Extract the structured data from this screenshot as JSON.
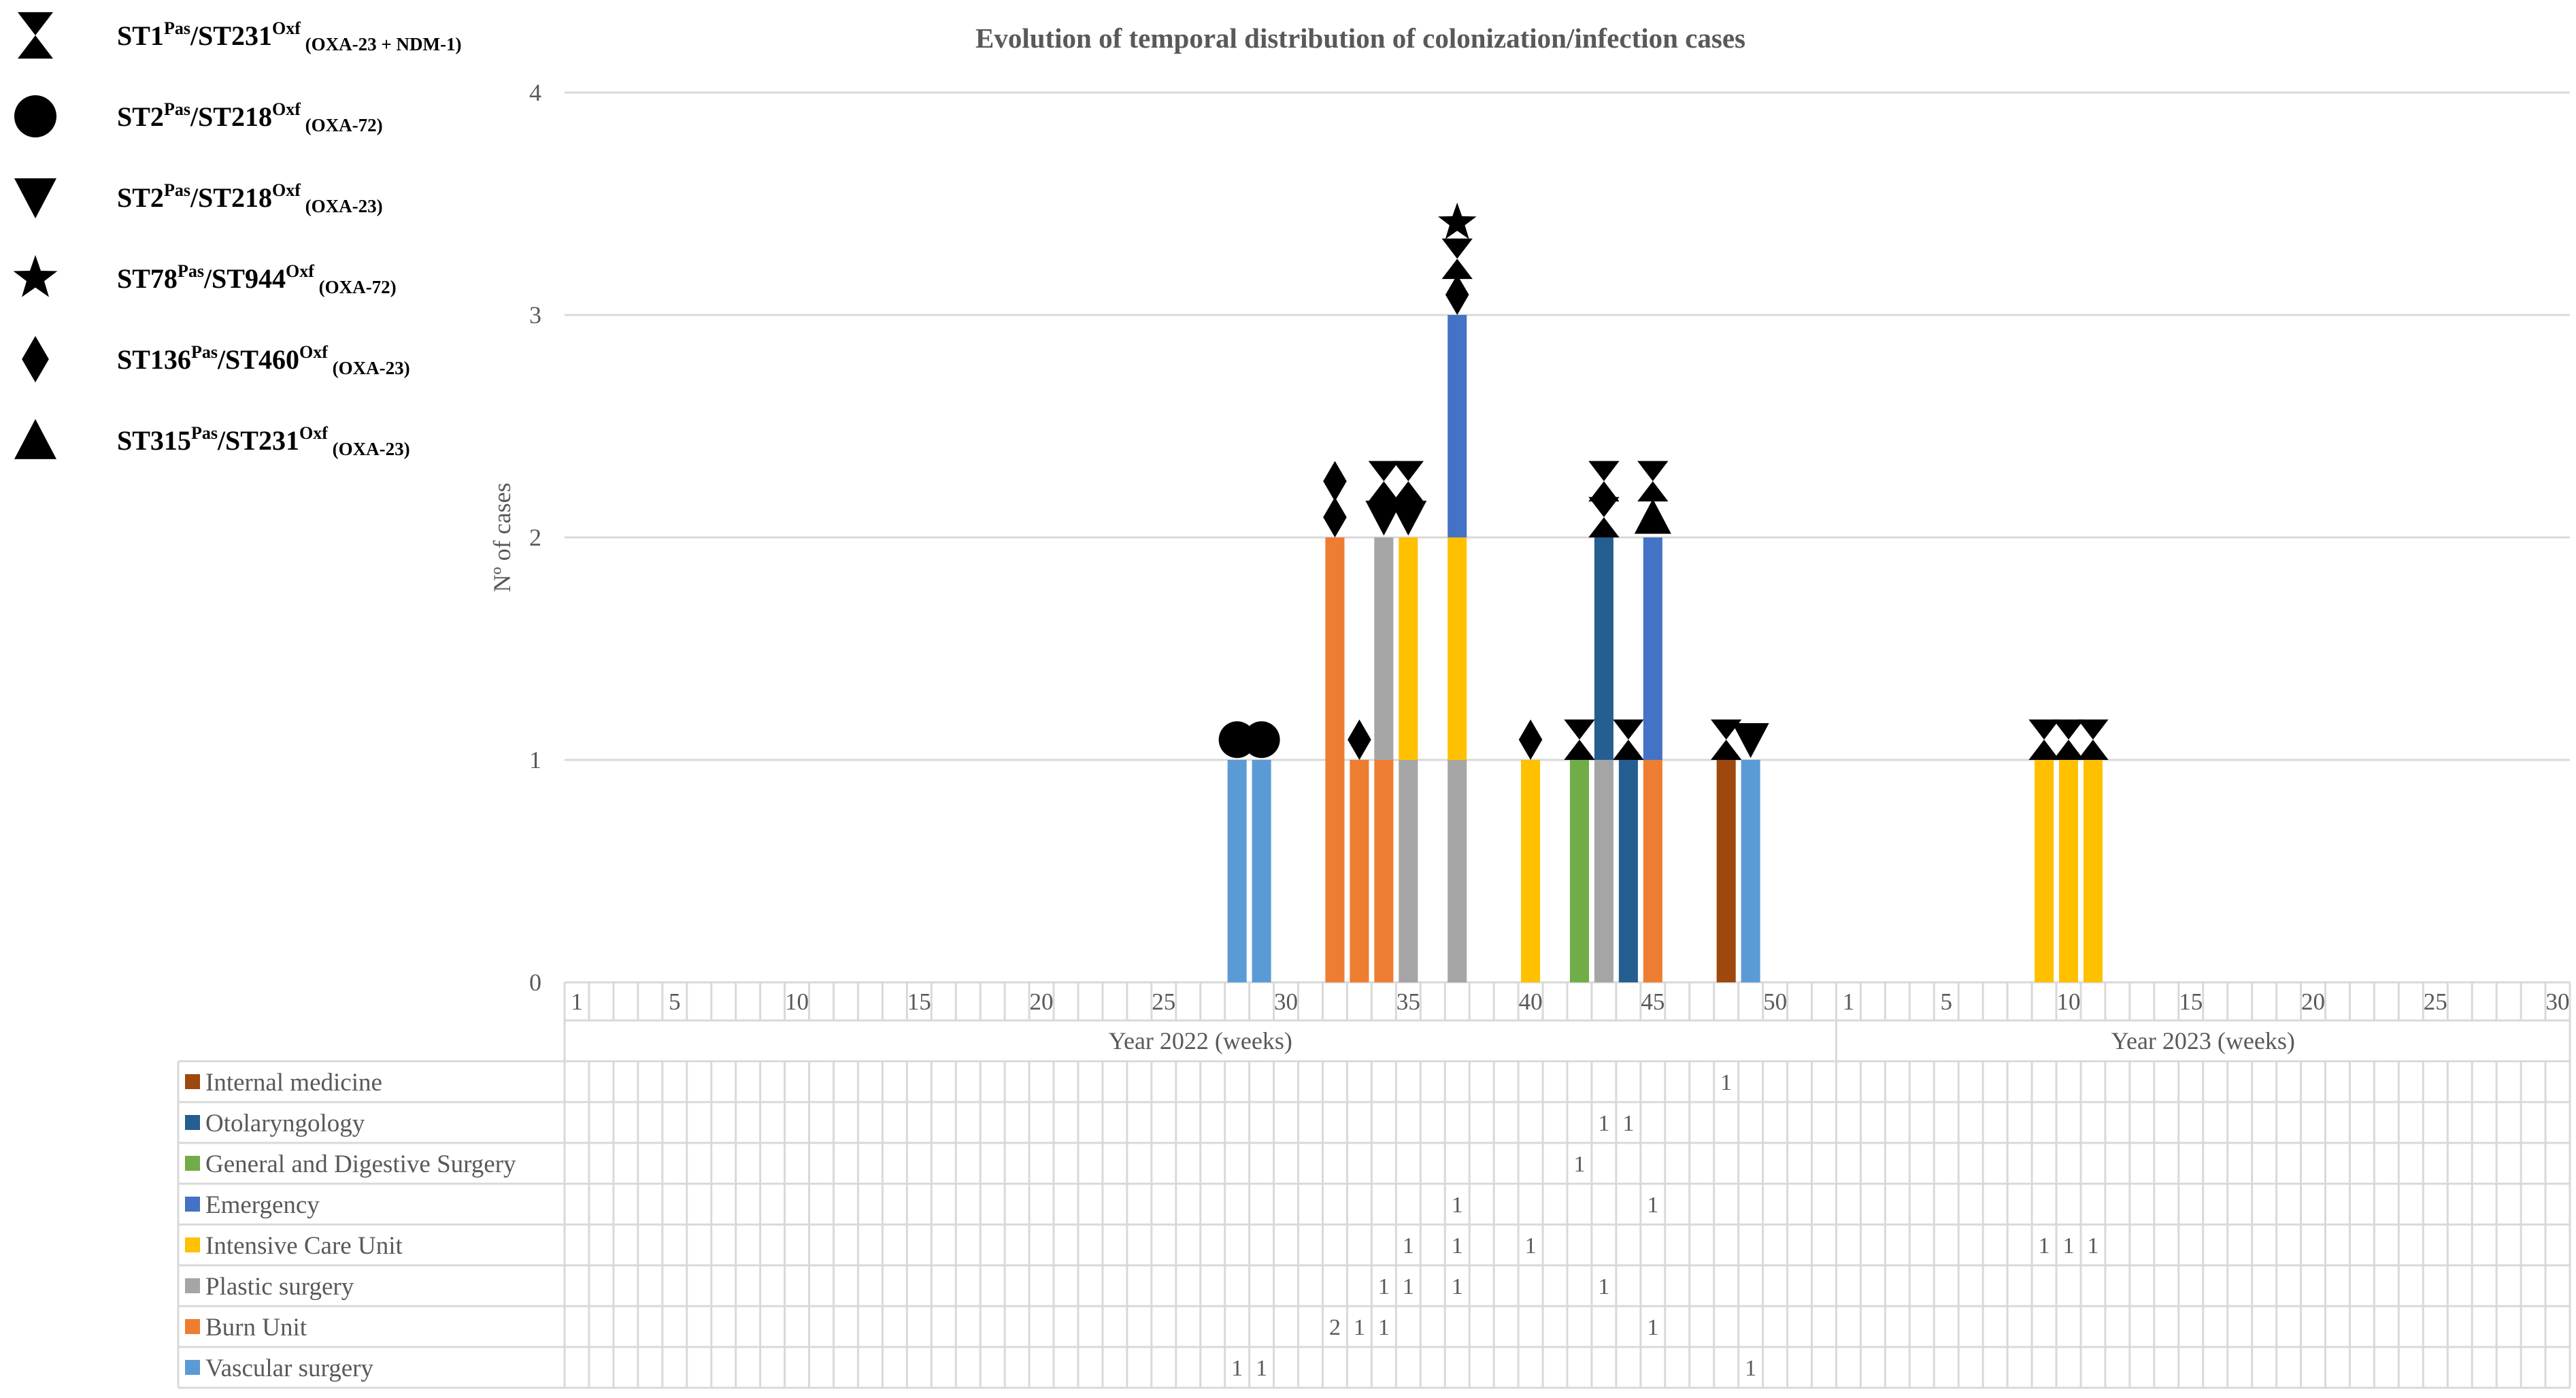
{
  "chart_data": {
    "type": "bar",
    "title": "Evolution of temporal distribution of colonization/infection cases",
    "ylabel": "Nº of cases",
    "ylim": [
      0,
      4
    ],
    "yticks": [
      "0",
      "1",
      "2",
      "3",
      "4"
    ],
    "grid": true,
    "legend_position": "table below plot",
    "periods": [
      {
        "label": "Year 2022 (weeks)",
        "weeks": 52,
        "tick_labels": [
          {
            "week": 1,
            "text": "1"
          },
          {
            "week": 5,
            "text": "5"
          },
          {
            "week": 10,
            "text": "10"
          },
          {
            "week": 15,
            "text": "15"
          },
          {
            "week": 20,
            "text": "20"
          },
          {
            "week": 25,
            "text": "25"
          },
          {
            "week": 30,
            "text": "30"
          },
          {
            "week": 35,
            "text": "35"
          },
          {
            "week": 40,
            "text": "40"
          },
          {
            "week": 45,
            "text": "45"
          },
          {
            "week": 50,
            "text": "50"
          }
        ]
      },
      {
        "label": "Year 2023 (weeks)",
        "weeks": 30,
        "tick_labels": [
          {
            "week": 1,
            "text": "1"
          },
          {
            "week": 5,
            "text": "5"
          },
          {
            "week": 10,
            "text": "10"
          },
          {
            "week": 15,
            "text": "15"
          },
          {
            "week": 20,
            "text": "20"
          },
          {
            "week": 25,
            "text": "25"
          },
          {
            "week": 30,
            "text": "30"
          }
        ]
      }
    ],
    "series": [
      {
        "name": "Internal medicine",
        "color": "#9E480E",
        "values": [
          {
            "year": 2022,
            "week": 48,
            "value": 1
          }
        ]
      },
      {
        "name": "Otolaryngology",
        "color": "#255E91",
        "values": [
          {
            "year": 2022,
            "week": 43,
            "value": 1
          },
          {
            "year": 2022,
            "week": 44,
            "value": 1
          }
        ]
      },
      {
        "name": "General and Digestive Surgery",
        "color": "#70AD47",
        "values": [
          {
            "year": 2022,
            "week": 42,
            "value": 1
          }
        ]
      },
      {
        "name": "Emergency",
        "color": "#4472C4",
        "values": [
          {
            "year": 2022,
            "week": 37,
            "value": 1
          },
          {
            "year": 2022,
            "week": 45,
            "value": 1
          }
        ]
      },
      {
        "name": "Intensive Care Unit",
        "color": "#FFC000",
        "values": [
          {
            "year": 2022,
            "week": 35,
            "value": 1
          },
          {
            "year": 2022,
            "week": 37,
            "value": 1
          },
          {
            "year": 2022,
            "week": 40,
            "value": 1
          },
          {
            "year": 2023,
            "week": 9,
            "value": 1
          },
          {
            "year": 2023,
            "week": 10,
            "value": 1
          },
          {
            "year": 2023,
            "week": 11,
            "value": 1
          }
        ]
      },
      {
        "name": "Plastic surgery",
        "color": "#A5A5A5",
        "values": [
          {
            "year": 2022,
            "week": 34,
            "value": 1
          },
          {
            "year": 2022,
            "week": 35,
            "value": 1
          },
          {
            "year": 2022,
            "week": 37,
            "value": 1
          },
          {
            "year": 2022,
            "week": 43,
            "value": 1
          }
        ]
      },
      {
        "name": "Burn Unit",
        "color": "#ED7D31",
        "values": [
          {
            "year": 2022,
            "week": 32,
            "value": 2
          },
          {
            "year": 2022,
            "week": 33,
            "value": 1
          },
          {
            "year": 2022,
            "week": 34,
            "value": 1
          },
          {
            "year": 2022,
            "week": 45,
            "value": 1
          }
        ]
      },
      {
        "name": "Vascular surgery",
        "color": "#5B9BD5",
        "values": [
          {
            "year": 2022,
            "week": 28,
            "value": 1
          },
          {
            "year": 2022,
            "week": 29,
            "value": 1
          },
          {
            "year": 2022,
            "week": 49,
            "value": 1
          }
        ]
      }
    ],
    "stack_order": [
      "Vascular surgery",
      "Burn Unit",
      "Plastic surgery",
      "Intensive Care Unit",
      "Emergency",
      "General and Digestive Surgery",
      "Otolaryngology",
      "Internal medicine"
    ],
    "strain_legend": [
      {
        "symbol": "hourglass",
        "main": "ST1",
        "sup1": "Pas",
        "mid": "/ST231",
        "sup2": "Oxf",
        "sub": "(OXA-23 + NDM-1)"
      },
      {
        "symbol": "circle",
        "main": "ST2",
        "sup1": "Pas",
        "mid": "/ST218",
        "sup2": "Oxf",
        "sub": "(OXA-72)"
      },
      {
        "symbol": "triangle-down",
        "main": "ST2",
        "sup1": "Pas",
        "mid": "/ST218",
        "sup2": "Oxf",
        "sub": "(OXA-23)"
      },
      {
        "symbol": "star",
        "main": "ST78",
        "sup1": "Pas",
        "mid": "/ST944",
        "sup2": "Oxf",
        "sub": "(OXA-72)"
      },
      {
        "symbol": "diamond",
        "main": "ST136",
        "sup1": "Pas",
        "mid": "/ST460",
        "sup2": "Oxf",
        "sub": "(OXA-23)"
      },
      {
        "symbol": "triangle-up",
        "main": "ST315",
        "sup1": "Pas",
        "mid": "/ST231",
        "sup2": "Oxf",
        "sub": "(OXA-23)"
      }
    ],
    "strain_markers": [
      {
        "year": 2022,
        "week": 28,
        "symbols": [
          "circle"
        ]
      },
      {
        "year": 2022,
        "week": 29,
        "symbols": [
          "circle"
        ]
      },
      {
        "year": 2022,
        "week": 32,
        "symbols": [
          "diamond",
          "diamond"
        ]
      },
      {
        "year": 2022,
        "week": 33,
        "symbols": [
          "diamond"
        ]
      },
      {
        "year": 2022,
        "week": 34,
        "symbols": [
          "triangle-down",
          "hourglass"
        ]
      },
      {
        "year": 2022,
        "week": 35,
        "symbols": [
          "triangle-down",
          "hourglass"
        ]
      },
      {
        "year": 2022,
        "week": 37,
        "symbols": [
          "diamond",
          "hourglass",
          "star"
        ]
      },
      {
        "year": 2022,
        "week": 40,
        "symbols": [
          "diamond"
        ]
      },
      {
        "year": 2022,
        "week": 42,
        "symbols": [
          "hourglass"
        ]
      },
      {
        "year": 2022,
        "week": 43,
        "symbols": [
          "hourglass",
          "hourglass"
        ]
      },
      {
        "year": 2022,
        "week": 44,
        "symbols": [
          "hourglass"
        ]
      },
      {
        "year": 2022,
        "week": 45,
        "symbols": [
          "triangle-up",
          "hourglass"
        ]
      },
      {
        "year": 2022,
        "week": 48,
        "symbols": [
          "hourglass"
        ]
      },
      {
        "year": 2022,
        "week": 49,
        "symbols": [
          "triangle-down"
        ]
      },
      {
        "year": 2023,
        "week": 9,
        "symbols": [
          "hourglass"
        ]
      },
      {
        "year": 2023,
        "week": 10,
        "symbols": [
          "hourglass"
        ]
      },
      {
        "year": 2023,
        "week": 11,
        "symbols": [
          "hourglass"
        ]
      }
    ]
  }
}
